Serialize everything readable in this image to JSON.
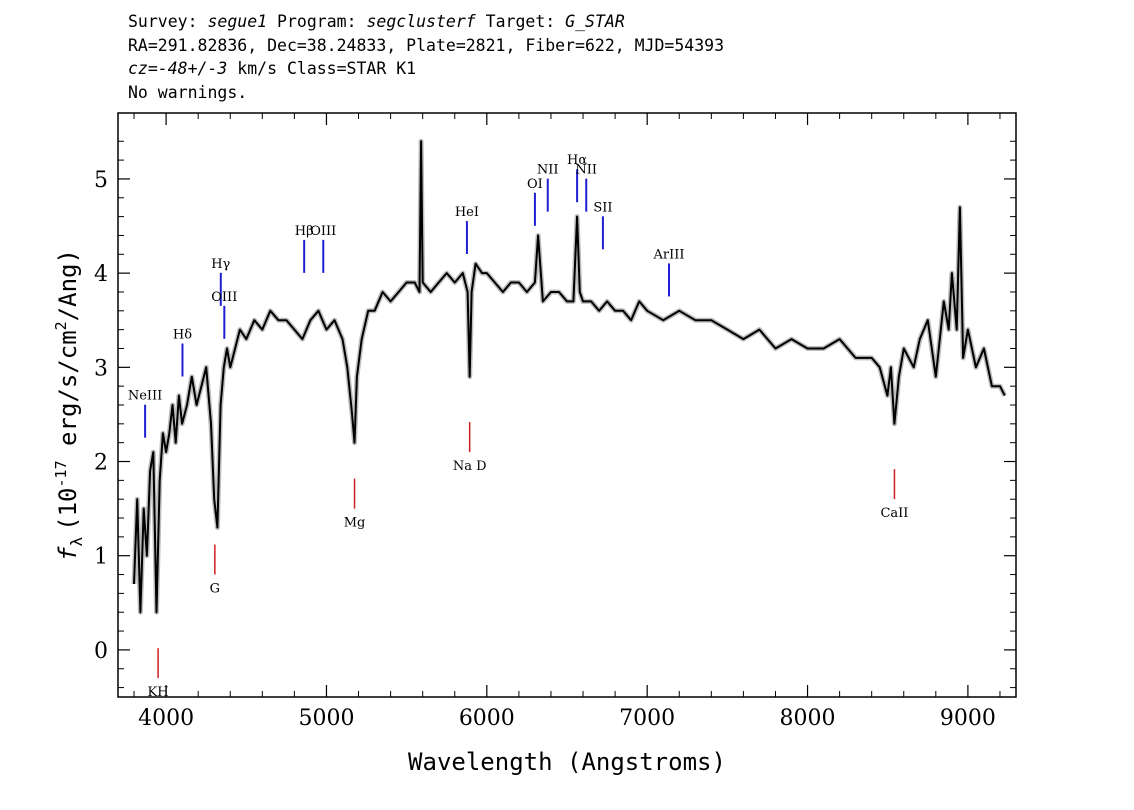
{
  "header": {
    "survey_label": "Survey:",
    "survey": "segue1",
    "program_label": "Program:",
    "program": "segclusterf",
    "target_label": "Target:",
    "target": "G_STAR",
    "line2": "RA=291.82836, Dec=38.24833, Plate=2821, Fiber=622, MJD=54393",
    "cz": "cz=-48+/-3",
    "cz_rest": "km/s Class=STAR K1",
    "line4": "No warnings."
  },
  "chart_data": {
    "type": "line",
    "xlabel": "Wavelength (Angstroms)",
    "ylabel_prefix": "f",
    "ylabel_sub": "λ",
    "ylabel_main": "(10",
    "ylabel_exp": "-17",
    "ylabel_units": " erg/s/cm",
    "ylabel_exp2": "2",
    "ylabel_end": "/Ang)",
    "xlim": [
      3700,
      9300
    ],
    "ylim": [
      -0.5,
      5.7
    ],
    "x_ticks": [
      4000,
      5000,
      6000,
      7000,
      8000,
      9000
    ],
    "x_tick_labels": [
      "4000",
      "5000",
      "6000",
      "7000",
      "8000",
      "9000"
    ],
    "y_ticks": [
      0,
      1,
      2,
      3,
      4,
      5
    ],
    "y_tick_labels": [
      "0",
      "1",
      "2",
      "3",
      "4",
      "5"
    ],
    "series": [
      {
        "color": "#000000",
        "x": [
          3800,
          3820,
          3840,
          3860,
          3880,
          3900,
          3920,
          3940,
          3960,
          3980,
          4000,
          4020,
          4040,
          4060,
          4080,
          4100,
          4130,
          4160,
          4190,
          4220,
          4250,
          4280,
          4300,
          4320,
          4340,
          4360,
          4380,
          4400,
          4430,
          4460,
          4500,
          4550,
          4600,
          4650,
          4700,
          4750,
          4800,
          4850,
          4900,
          4950,
          5000,
          5050,
          5100,
          5130,
          5160,
          5175,
          5190,
          5220,
          5260,
          5300,
          5350,
          5400,
          5450,
          5500,
          5550,
          5580,
          5590,
          5600,
          5650,
          5700,
          5750,
          5800,
          5850,
          5880,
          5893,
          5905,
          5930,
          5970,
          6000,
          6050,
          6100,
          6150,
          6200,
          6250,
          6300,
          6320,
          6350,
          6400,
          6450,
          6500,
          6540,
          6563,
          6580,
          6600,
          6650,
          6700,
          6750,
          6800,
          6850,
          6900,
          6950,
          7000,
          7100,
          7200,
          7300,
          7400,
          7500,
          7600,
          7700,
          7800,
          7900,
          8000,
          8100,
          8200,
          8300,
          8400,
          8450,
          8498,
          8520,
          8542,
          8570,
          8600,
          8662,
          8700,
          8750,
          8800,
          8850,
          8880,
          8900,
          8930,
          8950,
          8970,
          9000,
          9050,
          9100,
          9150,
          9200,
          9230
        ],
        "y": [
          0.7,
          1.6,
          0.4,
          1.5,
          1.0,
          1.9,
          2.1,
          0.4,
          1.8,
          2.3,
          2.1,
          2.3,
          2.6,
          2.2,
          2.7,
          2.4,
          2.6,
          2.9,
          2.6,
          2.8,
          3.0,
          2.4,
          1.6,
          1.3,
          2.6,
          3.0,
          3.2,
          3.0,
          3.2,
          3.4,
          3.3,
          3.5,
          3.4,
          3.6,
          3.5,
          3.5,
          3.4,
          3.3,
          3.5,
          3.6,
          3.4,
          3.5,
          3.3,
          3.0,
          2.5,
          2.2,
          2.9,
          3.3,
          3.6,
          3.6,
          3.8,
          3.7,
          3.8,
          3.9,
          3.9,
          3.8,
          5.4,
          3.9,
          3.8,
          3.9,
          4.0,
          3.9,
          4.0,
          3.8,
          2.9,
          3.8,
          4.1,
          4.0,
          4.0,
          3.9,
          3.8,
          3.9,
          3.9,
          3.8,
          3.9,
          4.4,
          3.7,
          3.8,
          3.8,
          3.7,
          3.7,
          4.6,
          3.8,
          3.7,
          3.7,
          3.6,
          3.7,
          3.6,
          3.6,
          3.5,
          3.7,
          3.6,
          3.5,
          3.6,
          3.5,
          3.5,
          3.4,
          3.3,
          3.4,
          3.2,
          3.3,
          3.2,
          3.2,
          3.3,
          3.1,
          3.1,
          3.0,
          2.7,
          3.0,
          2.4,
          2.9,
          3.2,
          3.0,
          3.3,
          3.5,
          2.9,
          3.7,
          3.4,
          4.0,
          3.4,
          4.7,
          3.1,
          3.4,
          3.0,
          3.2,
          2.8,
          2.8,
          2.7
        ]
      }
    ],
    "emission_lines": [
      {
        "label": "NeIII",
        "x": 3869,
        "y": 2.55
      },
      {
        "label": "Hδ",
        "x": 4102,
        "y": 3.2
      },
      {
        "label": "Hγ",
        "x": 4341,
        "y": 3.95
      },
      {
        "label": "OIII",
        "x": 4363,
        "y": 3.6
      },
      {
        "label": "Hβ",
        "x": 4861,
        "y": 4.3
      },
      {
        "label": "OIII",
        "x": 4980,
        "y": 4.3
      },
      {
        "label": "HeI",
        "x": 5876,
        "y": 4.5
      },
      {
        "label": "OI",
        "x": 6300,
        "y": 4.8
      },
      {
        "label": "NII",
        "x": 6380,
        "y": 4.95
      },
      {
        "label": "Hα",
        "x": 6563,
        "y": 5.05
      },
      {
        "label": "NII",
        "x": 6620,
        "y": 4.95
      },
      {
        "label": "SII",
        "x": 6724,
        "y": 4.55
      },
      {
        "label": "ArIII",
        "x": 7136,
        "y": 4.05
      }
    ],
    "absorption_lines": [
      {
        "label": "KH",
        "x": 3950,
        "y": -0.3
      },
      {
        "label": "G",
        "x": 4304,
        "y": 0.8
      },
      {
        "label": "Mg",
        "x": 5175,
        "y": 1.5
      },
      {
        "label": "Na D",
        "x": 5893,
        "y": 2.1
      },
      {
        "label": "CaII",
        "x": 8542,
        "y": 1.6
      }
    ]
  }
}
